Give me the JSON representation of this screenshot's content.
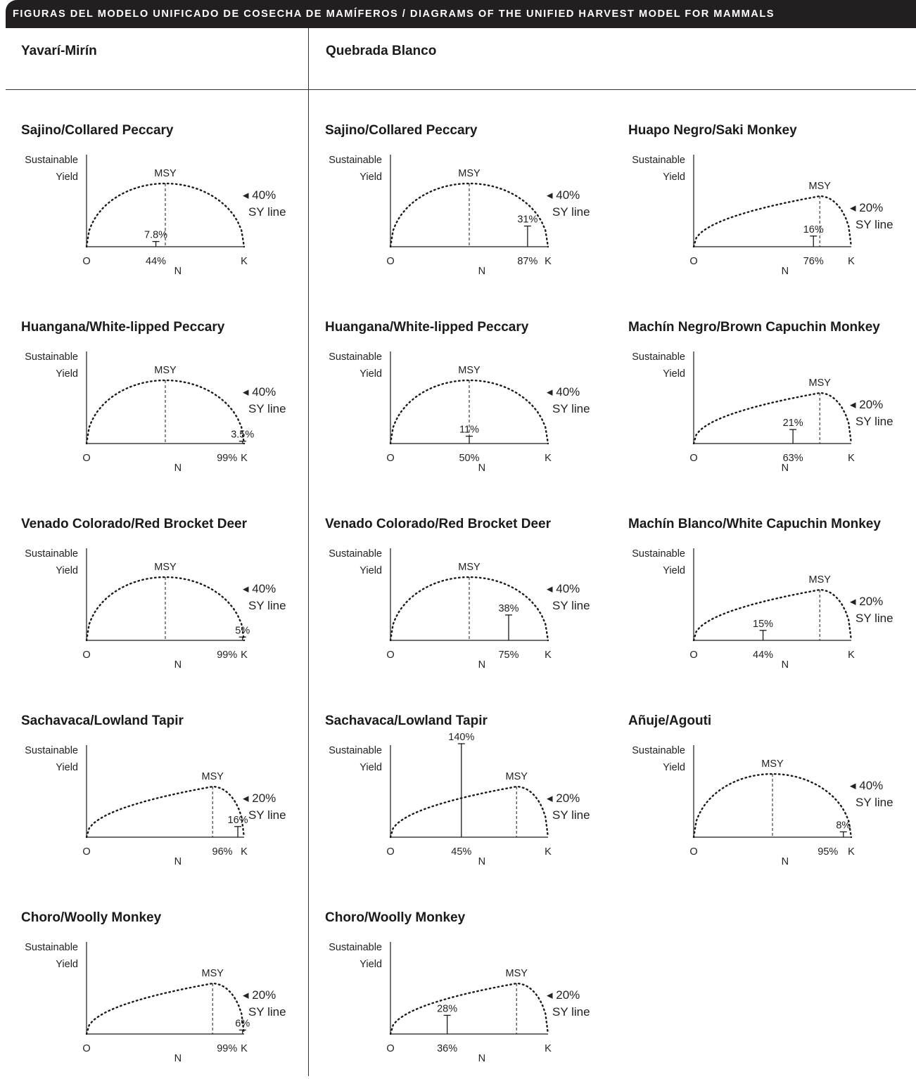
{
  "header": {
    "title": "FIGURAS DEL MODELO UNIFICADO DE COSECHA DE MAMÍFEROS / DIAGRAMS OF THE UNIFIED HARVEST MODEL FOR MAMMALS"
  },
  "columns": {
    "left": "Yavarí-Mirín",
    "right": "Quebrada Blanco"
  },
  "axis_labels": {
    "y_line1": "Sustainable",
    "y_line2": "Yield",
    "x": "N",
    "origin": "O",
    "k": "K",
    "msy": "MSY",
    "sy_line": "SY line"
  },
  "panels": [
    {
      "id": "yv-sajino",
      "title": "Sajino/Collared Peccary",
      "sy_pct": "40%",
      "msy_frac": 0.5,
      "harvest_x": 0.44,
      "harvest_x_label": "44%",
      "harvest_h_label": "7.8%",
      "harvest_h": 0.078
    },
    {
      "id": "yv-huangana",
      "title": "Huangana/White-lipped Peccary",
      "sy_pct": "40%",
      "msy_frac": 0.5,
      "harvest_x": 0.99,
      "harvest_x_label": "99%",
      "harvest_h_label": "3.5%",
      "harvest_h": 0.035
    },
    {
      "id": "yv-venado",
      "title": "Venado Colorado/Red Brocket Deer",
      "sy_pct": "40%",
      "msy_frac": 0.5,
      "harvest_x": 0.99,
      "harvest_x_label": "99%",
      "harvest_h_label": "5%",
      "harvest_h": 0.05
    },
    {
      "id": "yv-sachavaca",
      "title": "Sachavaca/Lowland Tapir",
      "sy_pct": "20%",
      "msy_frac": 0.8,
      "harvest_x": 0.96,
      "harvest_x_label": "96%",
      "harvest_h_label": "16%",
      "harvest_h": 0.16
    },
    {
      "id": "yv-choro",
      "title": "Choro/Woolly Monkey",
      "sy_pct": "20%",
      "msy_frac": 0.8,
      "harvest_x": 0.99,
      "harvest_x_label": "99%",
      "harvest_h_label": "6%",
      "harvest_h": 0.06
    },
    {
      "id": "qb-sajino",
      "title": "Sajino/Collared Peccary",
      "sy_pct": "40%",
      "msy_frac": 0.5,
      "harvest_x": 0.87,
      "harvest_x_label": "87%",
      "harvest_h_label": "31%",
      "harvest_h": 0.31
    },
    {
      "id": "qb-huangana",
      "title": "Huangana/White-lipped Peccary",
      "sy_pct": "40%",
      "msy_frac": 0.5,
      "harvest_x": 0.5,
      "harvest_x_label": "50%",
      "harvest_h_label": "11%",
      "harvest_h": 0.11
    },
    {
      "id": "qb-venado",
      "title": "Venado Colorado/Red Brocket Deer",
      "sy_pct": "40%",
      "msy_frac": 0.5,
      "harvest_x": 0.75,
      "harvest_x_label": "75%",
      "harvest_h_label": "38%",
      "harvest_h": 0.38
    },
    {
      "id": "qb-sachavaca",
      "title": "Sachavaca/Lowland Tapir",
      "sy_pct": "20%",
      "msy_frac": 0.8,
      "harvest_x": 0.45,
      "harvest_x_label": "45%",
      "harvest_h_label": "140%",
      "harvest_h": 1.4
    },
    {
      "id": "qb-choro",
      "title": "Choro/Woolly Monkey",
      "sy_pct": "20%",
      "msy_frac": 0.8,
      "harvest_x": 0.36,
      "harvest_x_label": "36%",
      "harvest_h_label": "28%",
      "harvest_h": 0.28
    },
    {
      "id": "qb-huapo",
      "title": "Huapo Negro/Saki Monkey",
      "sy_pct": "20%",
      "msy_frac": 0.8,
      "harvest_x": 0.76,
      "harvest_x_label": "76%",
      "harvest_h_label": "16%",
      "harvest_h": 0.16
    },
    {
      "id": "qb-machin-negro",
      "title": "Machín Negro/Brown Capuchin Monkey",
      "sy_pct": "20%",
      "msy_frac": 0.8,
      "harvest_x": 0.63,
      "harvest_x_label": "63%",
      "harvest_h_label": "21%",
      "harvest_h": 0.21
    },
    {
      "id": "qb-machin-blanco",
      "title": "Machín Blanco/White Capuchin Monkey",
      "sy_pct": "20%",
      "msy_frac": 0.8,
      "harvest_x": 0.44,
      "harvest_x_label": "44%",
      "harvest_h_label": "15%",
      "harvest_h": 0.15
    },
    {
      "id": "qb-anuje",
      "title": "Añuje/Agouti",
      "sy_pct": "40%",
      "msy_frac": 0.5,
      "harvest_x": 0.95,
      "harvest_x_label": "95%",
      "harvest_h_label": "8%",
      "harvest_h": 0.08
    }
  ]
}
